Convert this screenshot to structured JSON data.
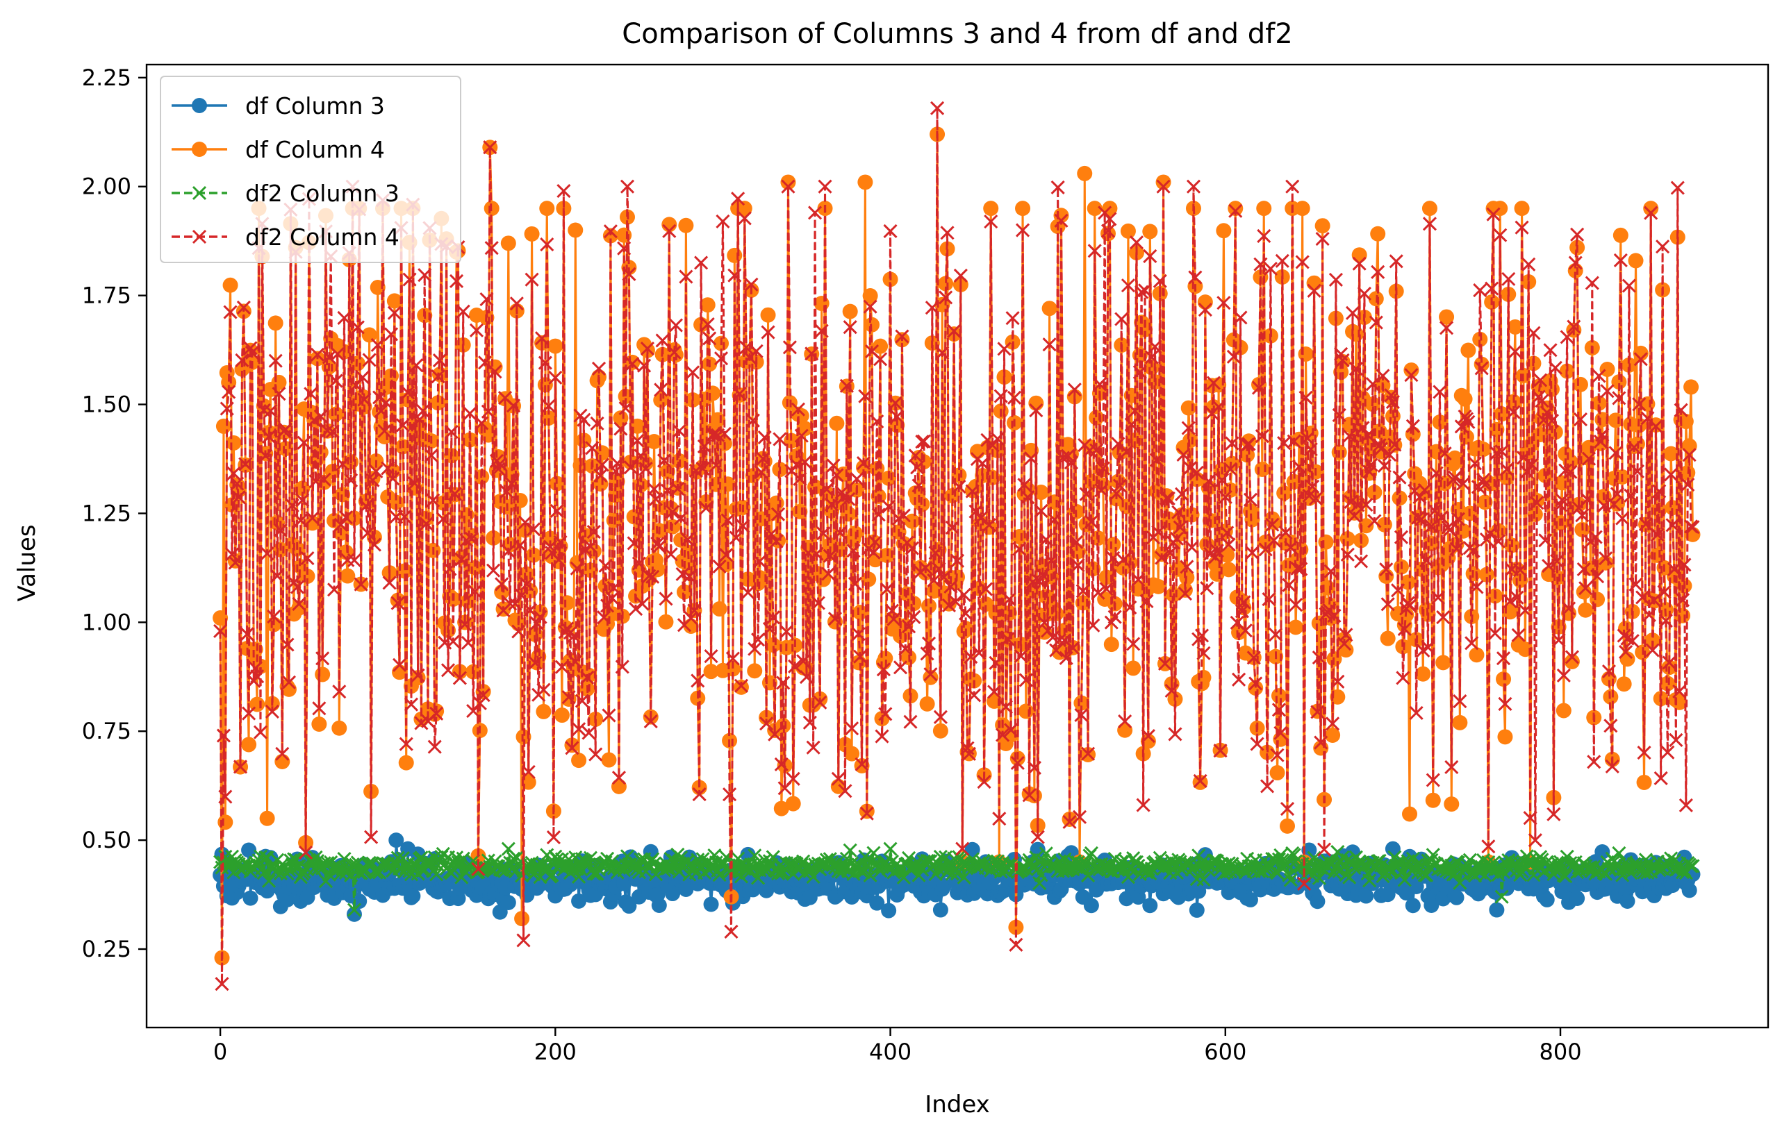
{
  "chart_data": {
    "type": "line",
    "title": "Comparison of Columns 3 and 4 from df and df2",
    "xlabel": "Index",
    "ylabel": "Values",
    "xlim": [
      -44,
      924
    ],
    "ylim": [
      0.07,
      2.28
    ],
    "n_points": 880,
    "xticks": [
      0,
      200,
      400,
      600,
      800
    ],
    "xtick_labels": [
      "0",
      "200",
      "400",
      "600",
      "800"
    ],
    "yticks": [
      0.25,
      0.5,
      0.75,
      1.0,
      1.25,
      1.5,
      1.75,
      2.0,
      2.25
    ],
    "ytick_labels": [
      "0.25",
      "0.50",
      "0.75",
      "1.00",
      "1.25",
      "1.50",
      "1.75",
      "2.00",
      "2.25"
    ],
    "grid": false,
    "legend_position": "upper-left",
    "series": [
      {
        "name": "df Column 3",
        "color": "#1f77b4",
        "line_style": "solid",
        "marker": "circle",
        "value_range": [
          0.33,
          0.5
        ],
        "typical_value": 0.41,
        "sample_points": [
          [
            0,
            0.42
          ],
          [
            10,
            0.38
          ],
          [
            30,
            0.46
          ],
          [
            48,
            0.36
          ],
          [
            80,
            0.33
          ],
          [
            105,
            0.5
          ],
          [
            112,
            0.48
          ],
          [
            250,
            0.37
          ],
          [
            430,
            0.34
          ],
          [
            520,
            0.35
          ],
          [
            555,
            0.35
          ],
          [
            700,
            0.48
          ],
          [
            712,
            0.35
          ],
          [
            762,
            0.34
          ],
          [
            840,
            0.36
          ],
          [
            878,
            0.42
          ]
        ]
      },
      {
        "name": "df Column 4",
        "color": "#ff7f0e",
        "line_style": "solid",
        "marker": "circle",
        "value_range": [
          0.23,
          2.12
        ],
        "typical_value": 1.25,
        "sample_points": [
          [
            0,
            1.01
          ],
          [
            1,
            0.23
          ],
          [
            2,
            1.45
          ],
          [
            28,
            0.55
          ],
          [
            45,
            1.86
          ],
          [
            161,
            2.09
          ],
          [
            172,
            1.87
          ],
          [
            180,
            0.32
          ],
          [
            212,
            1.9
          ],
          [
            243,
            1.93
          ],
          [
            305,
            0.37
          ],
          [
            339,
            2.01
          ],
          [
            385,
            2.01
          ],
          [
            428,
            2.12
          ],
          [
            475,
            0.3
          ],
          [
            516,
            2.03
          ],
          [
            563,
            2.01
          ],
          [
            658,
            1.91
          ],
          [
            710,
            0.56
          ],
          [
            810,
            1.86
          ],
          [
            845,
            1.83
          ],
          [
            878,
            1.54
          ]
        ]
      },
      {
        "name": "df2 Column 3",
        "color": "#2ca02c",
        "line_style": "dashed",
        "marker": "x",
        "value_range": [
          0.34,
          0.49
        ],
        "typical_value": 0.44,
        "sample_points": [
          [
            0,
            0.45
          ],
          [
            80,
            0.34
          ],
          [
            120,
            0.46
          ],
          [
            172,
            0.48
          ],
          [
            300,
            0.45
          ],
          [
            400,
            0.48
          ],
          [
            520,
            0.47
          ],
          [
            640,
            0.47
          ],
          [
            765,
            0.37
          ],
          [
            835,
            0.47
          ],
          [
            878,
            0.44
          ]
        ]
      },
      {
        "name": "df2 Column 4",
        "color": "#d62728",
        "line_style": "dashed",
        "marker": "x",
        "value_range": [
          0.17,
          2.18
        ],
        "typical_value": 1.22,
        "sample_points": [
          [
            0,
            0.98
          ],
          [
            1,
            0.17
          ],
          [
            45,
            1.85
          ],
          [
            66,
            1.84
          ],
          [
            161,
            2.09
          ],
          [
            181,
            0.27
          ],
          [
            243,
            2.0
          ],
          [
            300,
            1.92
          ],
          [
            305,
            0.29
          ],
          [
            339,
            2.0
          ],
          [
            355,
            1.94
          ],
          [
            428,
            2.18
          ],
          [
            475,
            0.26
          ],
          [
            528,
            1.94
          ],
          [
            563,
            2.0
          ],
          [
            658,
            1.88
          ],
          [
            785,
            0.5
          ],
          [
            810,
            1.89
          ],
          [
            875,
            0.58
          ],
          [
            878,
            1.22
          ]
        ]
      }
    ]
  }
}
